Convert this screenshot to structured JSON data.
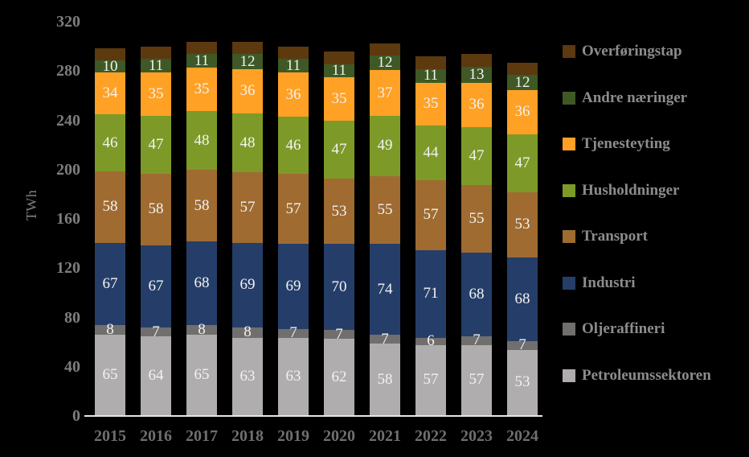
{
  "colors": {
    "background": "#000000",
    "axis_line": "#E8E6E3",
    "tick_text": "#7D7D7D",
    "year_text": "#6F6F6F",
    "legend_text": "#8C8C8C",
    "data_label_text": "#F2F2F2"
  },
  "chart_data": {
    "type": "bar",
    "stacked": true,
    "title": "",
    "xlabel": "",
    "ylabel": "TWh",
    "ylim": [
      0,
      320
    ],
    "ytick_step": 40,
    "ytick_labels": [
      "0",
      "40",
      "80",
      "120",
      "160",
      "200",
      "240",
      "280",
      "320"
    ],
    "grid": false,
    "legend_position": "right",
    "categories": [
      "2015",
      "2016",
      "2017",
      "2018",
      "2019",
      "2020",
      "2021",
      "2022",
      "2023",
      "2024"
    ],
    "series": [
      {
        "name": "Petroleumssektoren",
        "color": "#AFADAD",
        "show_labels": true,
        "values": [
          65,
          64,
          65,
          63,
          63,
          62,
          58,
          57,
          57,
          53
        ]
      },
      {
        "name": "Oljeraffineri",
        "color": "#716E6E",
        "show_labels": true,
        "values": [
          8,
          7,
          8,
          8,
          7,
          7,
          7,
          6,
          7,
          7
        ]
      },
      {
        "name": "Industri",
        "color": "#253E69",
        "show_labels": true,
        "values": [
          67,
          67,
          68,
          69,
          69,
          70,
          74,
          71,
          68,
          68
        ]
      },
      {
        "name": "Transport",
        "color": "#9F6B31",
        "show_labels": true,
        "values": [
          58,
          58,
          58,
          57,
          57,
          53,
          55,
          57,
          55,
          53
        ]
      },
      {
        "name": "Husholdninger",
        "color": "#7D9A28",
        "show_labels": true,
        "values": [
          46,
          47,
          48,
          48,
          46,
          47,
          49,
          44,
          47,
          47
        ]
      },
      {
        "name": "Tjenesteyting",
        "color": "#FFA125",
        "show_labels": true,
        "values": [
          34,
          35,
          35,
          36,
          36,
          35,
          37,
          35,
          36,
          36
        ]
      },
      {
        "name": "Andre næringer",
        "color": "#3E5925",
        "show_labels": true,
        "values": [
          10,
          11,
          11,
          12,
          11,
          11,
          12,
          11,
          13,
          12
        ]
      },
      {
        "name": "Overføringstap",
        "color": "#5C390E",
        "show_labels": false,
        "values": [
          10,
          10,
          10,
          10,
          10,
          10,
          10,
          10,
          10,
          10
        ]
      }
    ],
    "legend_order_top_to_bottom": [
      "Overføringstap",
      "Andre næringer",
      "Tjenesteyting",
      "Husholdninger",
      "Transport",
      "Industri",
      "Oljeraffineri",
      "Petroleumssektoren"
    ]
  }
}
